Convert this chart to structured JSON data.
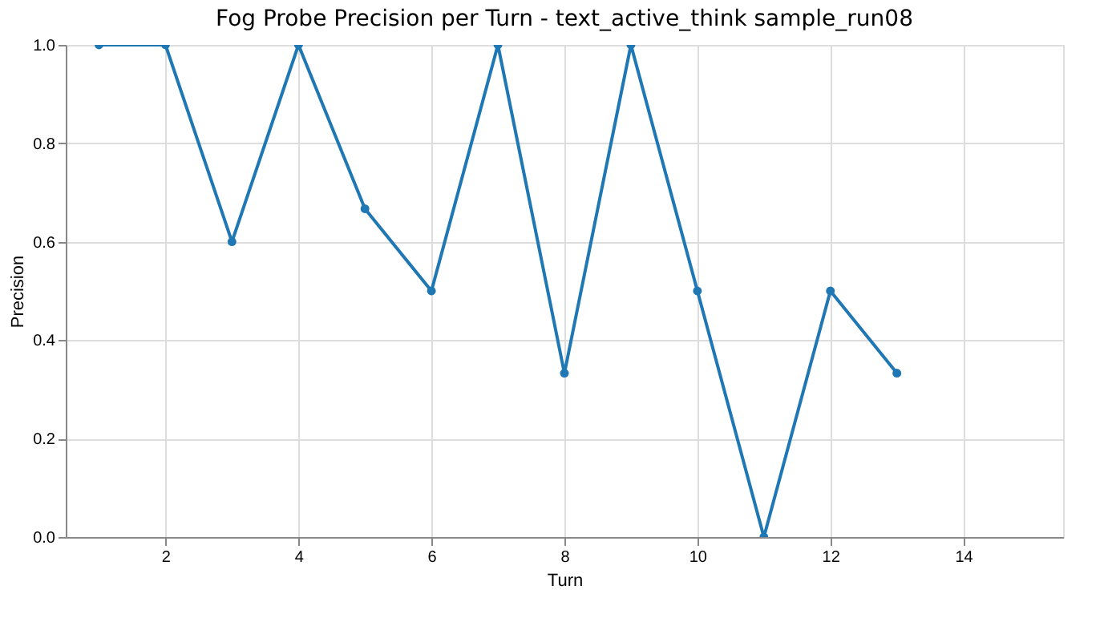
{
  "chart_data": {
    "type": "line",
    "title": "Fog Probe Precision per Turn - text_active_think sample_run08",
    "xlabel": "Turn",
    "ylabel": "Precision",
    "x": [
      1,
      2,
      3,
      4,
      5,
      6,
      7,
      8,
      9,
      10,
      11,
      12,
      13
    ],
    "series": [
      {
        "color": "#1f77b4",
        "values": [
          1,
          1,
          0.6,
          1,
          0.667,
          0.5,
          1,
          0.333,
          1,
          0.5,
          0,
          0.5,
          0.333
        ]
      }
    ],
    "xlim": [
      0.5,
      15.5
    ],
    "xticks": [
      2,
      4,
      6,
      8,
      10,
      12,
      14
    ],
    "ylim": [
      0,
      1
    ],
    "yticks": [
      {
        "value": 0,
        "label": "0.0"
      },
      0.2,
      0.4,
      0.6,
      0.8,
      {
        "value": 1,
        "label": "1.0"
      }
    ],
    "grid": true,
    "marker": "circle",
    "line_style": "solid"
  }
}
